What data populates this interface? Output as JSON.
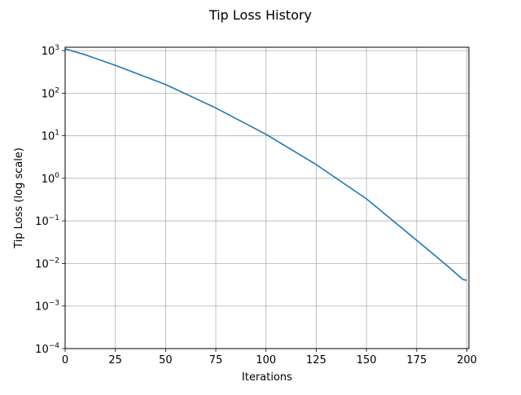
{
  "chart_data": {
    "type": "line",
    "title": "Tip Loss History",
    "xlabel": "Iterations",
    "ylabel": "Tip Loss (log scale)",
    "xlim": [
      0,
      201
    ],
    "ylim": [
      0.0001,
      1200
    ],
    "yscale": "log",
    "grid": true,
    "x_ticks": [
      {
        "value": 0,
        "label": "0"
      },
      {
        "value": 25,
        "label": "25"
      },
      {
        "value": 50,
        "label": "50"
      },
      {
        "value": 75,
        "label": "75"
      },
      {
        "value": 100,
        "label": "100"
      },
      {
        "value": 125,
        "label": "125"
      },
      {
        "value": 150,
        "label": "150"
      },
      {
        "value": 175,
        "label": "175"
      },
      {
        "value": 200,
        "label": "200"
      }
    ],
    "y_ticks": [
      {
        "value": 0.0001,
        "base": "10",
        "exp": "−4"
      },
      {
        "value": 0.001,
        "base": "10",
        "exp": "−3"
      },
      {
        "value": 0.01,
        "base": "10",
        "exp": "−2"
      },
      {
        "value": 0.1,
        "base": "10",
        "exp": "−1"
      },
      {
        "value": 1,
        "base": "10",
        "exp": "0"
      },
      {
        "value": 10,
        "base": "10",
        "exp": "1"
      },
      {
        "value": 100,
        "base": "10",
        "exp": "2"
      },
      {
        "value": 1000,
        "base": "10",
        "exp": "3"
      }
    ],
    "series": [
      {
        "color": "#1f77b4",
        "x": [
          0,
          10,
          25,
          50,
          75,
          100,
          125,
          150,
          175,
          190,
          198,
          200
        ],
        "y": [
          1100,
          800,
          450,
          160,
          45,
          10.8,
          2.1,
          0.33,
          0.035,
          0.009,
          0.0042,
          0.004
        ]
      }
    ]
  }
}
